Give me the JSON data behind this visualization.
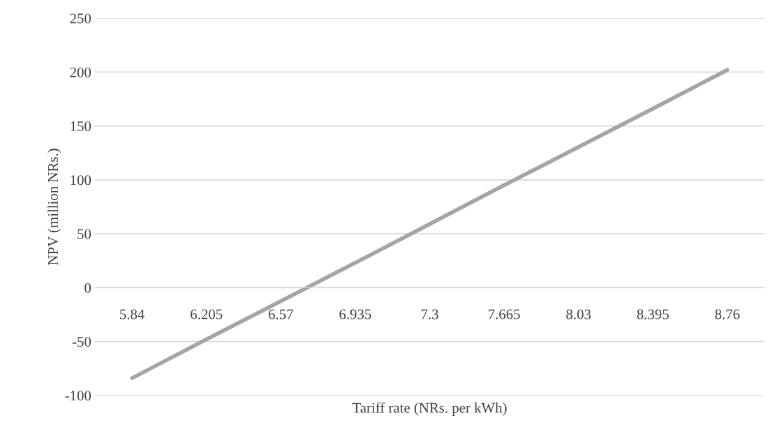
{
  "chart_data": {
    "type": "line",
    "xlabel": "Tariff rate (NRs. per kWh)",
    "ylabel": "NPV (million NRs.)",
    "categories": [
      "5.84",
      "6.205",
      "6.57",
      "6.935",
      "7.3",
      "7.665",
      "8.03",
      "8.395",
      "8.76"
    ],
    "series": [
      {
        "color": "#a5a5a5",
        "values": [
          -84,
          -48,
          -12.5,
          23,
          59,
          95,
          130.5,
          166,
          202
        ]
      }
    ],
    "ylim": [
      -100,
      250
    ],
    "yticks": [
      -100,
      -50,
      0,
      50,
      100,
      150,
      200,
      250
    ],
    "grid": "y",
    "legend": false,
    "marker": "none",
    "line_style": "solid"
  }
}
